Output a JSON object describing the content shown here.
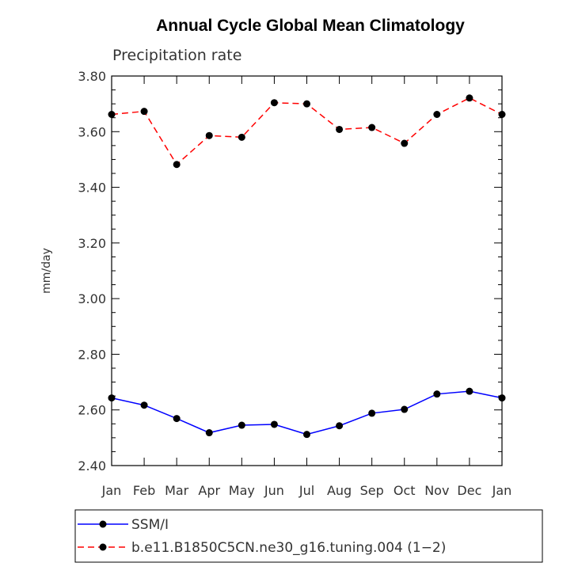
{
  "chart_data": {
    "type": "line",
    "title": "Annual Cycle Global Mean Climatology",
    "subtitle": "Precipitation rate",
    "xlabel": "",
    "ylabel": "mm/day",
    "categories": [
      "Jan",
      "Feb",
      "Mar",
      "Apr",
      "May",
      "Jun",
      "Jul",
      "Aug",
      "Sep",
      "Oct",
      "Nov",
      "Dec",
      "Jan"
    ],
    "ylim": [
      2.4,
      3.8
    ],
    "yticks": [
      "2.40",
      "2.60",
      "2.80",
      "3.00",
      "3.20",
      "3.40",
      "3.60",
      "3.80"
    ],
    "grid": false,
    "legend_position": "bottom",
    "series": [
      {
        "name": "SSM/I",
        "color": "#0000ff",
        "line_style": "solid",
        "marker": "filled-circle",
        "values": [
          2.643,
          2.617,
          2.569,
          2.518,
          2.545,
          2.548,
          2.512,
          2.543,
          2.588,
          2.602,
          2.657,
          2.667,
          2.643
        ]
      },
      {
        "name": "b.e11.B1850C5CN.ne30_g16.tuning.004 (1−2)",
        "color": "#ff0000",
        "line_style": "dashed",
        "marker": "filled-circle",
        "values": [
          3.662,
          3.673,
          3.482,
          3.586,
          3.58,
          3.704,
          3.7,
          3.608,
          3.615,
          3.558,
          3.662,
          3.721,
          3.662
        ]
      }
    ]
  }
}
